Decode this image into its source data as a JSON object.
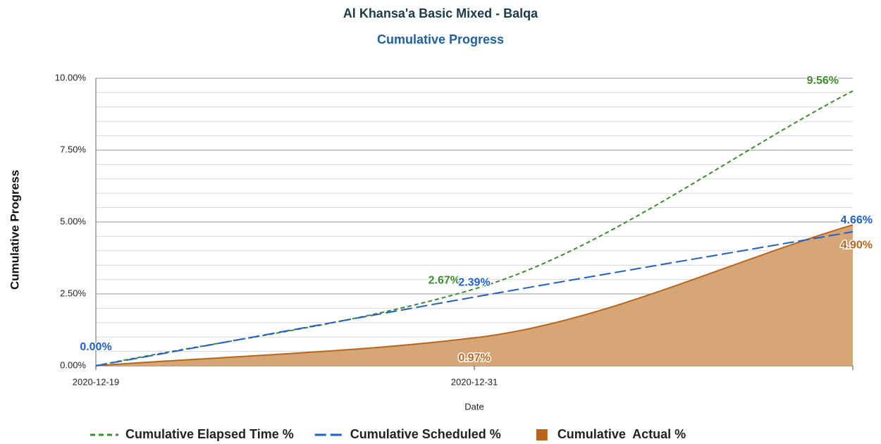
{
  "chart_data": {
    "type": "line",
    "title": "Al Khansa'a Basic Mixed - Balqa",
    "subtitle": "Cumulative Progress",
    "y_label": "Cumulative Progress",
    "x_label": "Date",
    "categories": [
      "2020-12-19",
      "2020-12-31",
      null
    ],
    "series": [
      {
        "name": "Cumulative Elapsed Time %",
        "color": "#3d8b2f",
        "style": "dashed",
        "values": [
          0,
          2.67,
          9.56
        ],
        "value_labels": [
          null,
          "2.67%",
          "9.56%"
        ]
      },
      {
        "name": "Cumulative Scheduled %",
        "color": "#1f5fcc",
        "style": "dashed",
        "values": [
          0,
          2.39,
          4.66
        ],
        "value_labels": [
          "0.00%",
          "2.39%",
          "4.66%"
        ]
      },
      {
        "name": "Cumulative  Actual %",
        "color": "#b8651b",
        "style": "area",
        "fill": "#d6a677",
        "values": [
          0,
          0.97,
          4.9
        ],
        "value_labels": [
          null,
          "0.97%",
          "4.90%"
        ]
      }
    ],
    "ylim": [
      0,
      10
    ],
    "yticks": [
      {
        "value": 0,
        "label": "0.00%"
      },
      {
        "value": 2.5,
        "label": "2.50%"
      },
      {
        "value": 5,
        "label": "5.00%"
      },
      {
        "value": 7.5,
        "label": "7.50%"
      },
      {
        "value": 10,
        "label": "10.00%"
      }
    ],
    "grid": true
  }
}
